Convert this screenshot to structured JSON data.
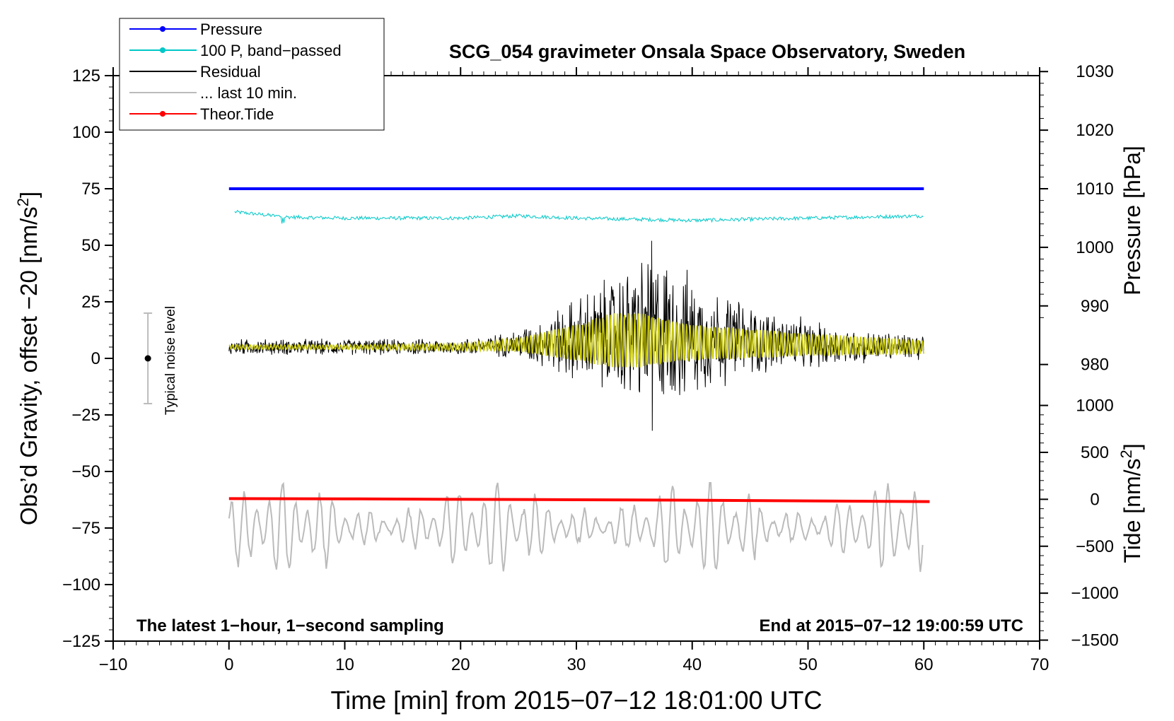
{
  "chart_data": {
    "type": "line",
    "title": "SCG_054 gravimeter Onsala Space Observatory, Sweden",
    "xlabel": "Time [min] from 2015−07−12 18:01:00 UTC",
    "ylabel": "Obs’d Gravity, offset −20 [nm/s²]",
    "ylabel_main": "Obs’d Gravity, offset −20 [nm/s",
    "ylabel_sup": "2",
    "ylabel_close": "]",
    "xlim": [
      -10,
      70
    ],
    "ylim": [
      -125,
      125
    ],
    "x_ticks": [
      -10,
      0,
      10,
      20,
      30,
      40,
      50,
      60,
      70
    ],
    "x_tick_labels": [
      "−10",
      "0",
      "10",
      "20",
      "30",
      "40",
      "50",
      "60",
      "70"
    ],
    "y_ticks": [
      125,
      100,
      75,
      50,
      25,
      0,
      -25,
      -50,
      -75,
      -100,
      -125
    ],
    "y_tick_labels": [
      "125",
      "100",
      "75",
      "50",
      "25",
      "0",
      "−25",
      "−50",
      "−75",
      "−100",
      "−125"
    ],
    "pressure_axis": {
      "label": "Pressure [hPa]",
      "ticks": [
        1030,
        1020,
        1010,
        1000,
        990,
        980
      ],
      "tick_labels": [
        "1030",
        "1020",
        "1010",
        "1000",
        "990",
        "980"
      ],
      "ref_value": 1010,
      "ref_gravity": 75,
      "gravity_per_hpa": 2.59
    },
    "tide_axis": {
      "label_main": "Tide [nm/s",
      "label_sup": "2",
      "label_close": "]",
      "ticks": [
        1000,
        500,
        0,
        -500,
        -1000,
        -1500
      ],
      "tick_labels": [
        "1000",
        "500",
        "0",
        "−500",
        "−1000",
        "−1500"
      ],
      "ref_value": 0,
      "ref_gravity": -62.3,
      "gravity_per_unit": 0.0415
    },
    "legend": {
      "position": "top-left",
      "entries": [
        {
          "label": "Pressure",
          "color": "#0000ff",
          "marker": true
        },
        {
          "label": "100 P, band−passed",
          "color": "#00c8c8",
          "marker": true
        },
        {
          "label": "Residual",
          "color": "#000000",
          "marker": false
        },
        {
          "label": "... last 10 min.",
          "color": "#bbbbbb",
          "marker": false
        },
        {
          "label": "Theor.Tide",
          "color": "#ff0000",
          "marker": true
        }
      ]
    },
    "noise_bar": {
      "label": "Typical noise level",
      "x": -7,
      "center": 0,
      "low": -20,
      "high": 20
    },
    "series": [
      {
        "name": "Pressure",
        "color": "#0000ff",
        "x": [
          0,
          60
        ],
        "y": [
          75,
          75
        ]
      },
      {
        "name": "100 P, band-passed",
        "color": "#00c8c8",
        "x": [
          0,
          5,
          10,
          20,
          25,
          30,
          40,
          50,
          60
        ],
        "y": [
          65,
          62.5,
          62,
          62,
          63,
          62,
          61,
          62,
          63
        ]
      },
      {
        "name": "Theor.Tide",
        "color": "#ff0000",
        "x": [
          0,
          10,
          20,
          30,
          40,
          50,
          60.5
        ],
        "y": [
          -62,
          -62.1,
          -62.3,
          -62.5,
          -62.7,
          -63,
          -63.3
        ]
      },
      {
        "name": "Residual",
        "color": "#000000",
        "x": [
          0,
          5,
          10,
          15,
          20,
          24,
          27,
          30,
          33,
          36.5,
          37,
          40,
          45,
          50,
          55,
          60
        ],
        "y": [
          5,
          5,
          5,
          5,
          5,
          6,
          7,
          8,
          10,
          12,
          12,
          10,
          8,
          6,
          5,
          5
        ],
        "envelope": [
          4,
          4,
          4,
          4,
          4,
          6,
          12,
          22,
          30,
          40,
          40,
          30,
          18,
          12,
          8,
          7
        ],
        "extremes": {
          "max": 52,
          "min": -32
        }
      },
      {
        "name": "Residual (smoothed)",
        "color": "#c8c800",
        "x": [
          0,
          10,
          20,
          25,
          30,
          33,
          36,
          40,
          50,
          60
        ],
        "y": [
          5,
          5,
          5,
          6,
          7,
          8,
          8,
          7,
          6,
          5
        ],
        "envelope": [
          1,
          1,
          1.5,
          3,
          8,
          12,
          12,
          8,
          5,
          3
        ]
      },
      {
        "name": "... last 10 min.",
        "color": "#bbbbbb",
        "x": [
          0,
          3,
          5,
          10,
          14,
          20,
          26,
          33,
          40,
          50,
          60
        ],
        "y": [
          -64,
          -60,
          -95,
          -80,
          -55,
          -80,
          -62,
          -63,
          -78,
          -75,
          -80
        ],
        "range": [
          -96,
          -55
        ]
      }
    ],
    "annotations": {
      "bottom_left": "The latest 1−hour, 1−second sampling",
      "bottom_right": "End at 2015−07−12 19:00:59 UTC"
    }
  }
}
